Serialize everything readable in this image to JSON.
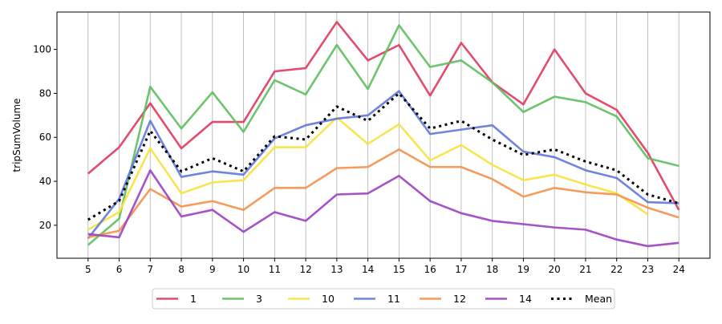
{
  "chart_data": {
    "type": "line",
    "title": "",
    "xlabel": "",
    "ylabel": "tripSumVolume",
    "x": [
      5,
      6,
      7,
      8,
      9,
      10,
      11,
      12,
      13,
      14,
      15,
      16,
      17,
      18,
      19,
      20,
      21,
      22,
      23,
      24
    ],
    "xlim": [
      4,
      25
    ],
    "ylim": [
      5,
      117
    ],
    "yticks": [
      20,
      40,
      60,
      80,
      100
    ],
    "grid": "vertical",
    "legend_position": "bottom-center",
    "series": [
      {
        "name": "1",
        "color": "#e0395e",
        "style": "solid",
        "values": [
          43.5,
          55.5,
          75.5,
          55,
          67,
          67,
          90,
          91.5,
          112.5,
          95,
          102,
          79,
          103,
          85,
          75,
          100,
          80,
          72.5,
          53,
          27
        ]
      },
      {
        "name": "3",
        "color": "#5cbf5c",
        "style": "solid",
        "values": [
          11,
          23,
          83,
          64,
          80.5,
          62.5,
          86,
          79.5,
          102,
          82,
          111,
          92,
          95,
          85,
          71.5,
          78.5,
          76,
          69.5,
          50.5,
          47
        ]
      },
      {
        "name": "10",
        "color": "#f8e23d",
        "style": "solid",
        "values": [
          18,
          26,
          55,
          34.5,
          39.5,
          40.5,
          55.5,
          55.5,
          69,
          57,
          66,
          49.5,
          56.5,
          47.5,
          40.5,
          43,
          38.5,
          34.5,
          25,
          null
        ]
      },
      {
        "name": "11",
        "color": "#6175da",
        "style": "solid",
        "values": [
          14,
          32,
          67.5,
          42,
          44.5,
          43,
          59.5,
          65.5,
          68.5,
          70,
          81,
          61.5,
          63.5,
          65.5,
          53.5,
          51,
          45,
          41.5,
          30.5,
          30
        ]
      },
      {
        "name": "12",
        "color": "#f5904a",
        "style": "solid",
        "values": [
          14.5,
          17.5,
          36.5,
          28.5,
          31,
          27,
          37,
          37,
          46,
          46.5,
          54.5,
          46.5,
          46.5,
          41,
          33,
          37,
          35,
          34,
          28,
          23.5
        ]
      },
      {
        "name": "14",
        "color": "#9b40c0",
        "style": "solid",
        "values": [
          16,
          14.5,
          45,
          24,
          27,
          17,
          26,
          22,
          34,
          34.5,
          42.5,
          31,
          25.5,
          22,
          20.5,
          19,
          18,
          13.5,
          10.5,
          12
        ]
      },
      {
        "name": "Mean",
        "color": "#000000",
        "style": "dotted",
        "values": [
          22.5,
          31,
          63,
          44.5,
          50.5,
          44.5,
          60.5,
          59,
          74,
          67.5,
          80,
          64,
          67.5,
          59,
          52,
          54.5,
          49,
          45,
          34,
          30
        ]
      }
    ]
  }
}
